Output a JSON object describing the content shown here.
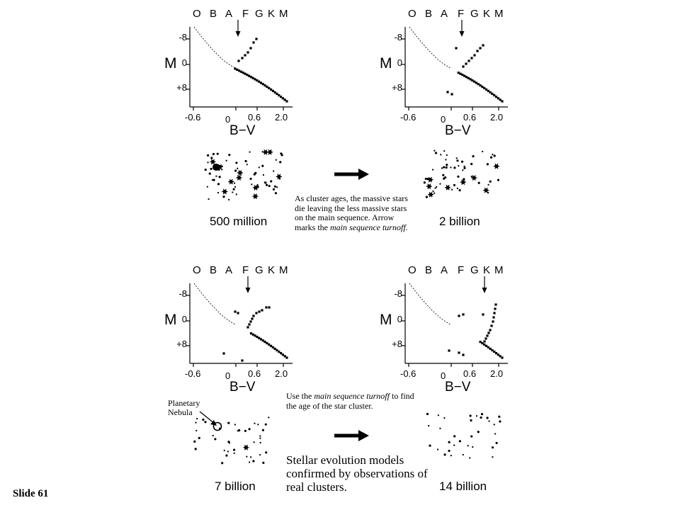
{
  "hr_common": {
    "spectral_classes": [
      "O",
      "B",
      "A",
      "F",
      "G",
      "K",
      "M"
    ],
    "y_axis_label": "M",
    "y_ticks": [
      "-8",
      "0",
      "+8"
    ],
    "x_ticks": [
      "-0.6",
      "0",
      "0.6",
      "2.0"
    ],
    "x_axis_label": "B−V"
  },
  "panels": [
    {
      "id": "500m",
      "turnoff_class": "F",
      "turnoff": "early"
    },
    {
      "id": "2b",
      "turnoff_class": "F",
      "turnoff": "mid"
    },
    {
      "id": "7b",
      "turnoff_class": "G",
      "turnoff": "late"
    },
    {
      "id": "14b",
      "turnoff_class": "K",
      "turnoff": "latest"
    }
  ],
  "ages": {
    "a500m": "500 million",
    "a2b": "2 billion",
    "a7b": "7 billion",
    "a14b": "14 billion"
  },
  "notes": {
    "ages_note_plain": "As cluster ages, the massive stars die leaving the less massive stars on the main sequence. Arrow marks the",
    "ages_note_italic": "main sequence turnoff.",
    "turnoff_use_prefix": "Use the ",
    "turnoff_use_italic": "main sequence turnoff",
    "turnoff_use_suffix": " to find the age of the star cluster.",
    "models": "Stellar evolution models confirmed by observations of real clusters."
  },
  "planetary_nebula": {
    "line1": "Planetary",
    "line2": "Nebula"
  },
  "slide_number": "Slide 61"
}
